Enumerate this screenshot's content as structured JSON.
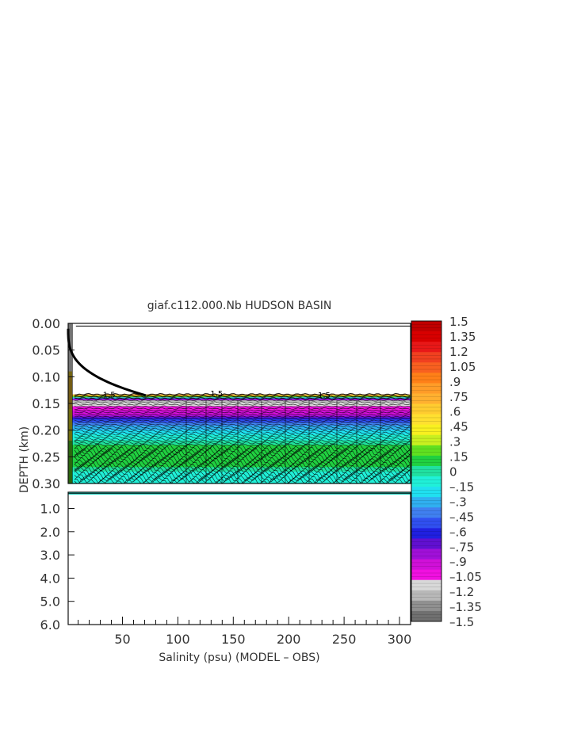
{
  "chart_data": {
    "type": "heatmap",
    "title": "giaf.c112.000.Nb HUDSON BASIN",
    "xlabel": "Salinity (psu) (MODEL – OBS)",
    "ylabel": "DEPTH (km)",
    "xlim": [
      1,
      310
    ],
    "x_ticks": [
      "50",
      "100",
      "150",
      "200",
      "250",
      "300"
    ],
    "x_tick_values": [
      50,
      100,
      150,
      200,
      250,
      300
    ],
    "upper_panel": {
      "ylim": [
        0.0,
        0.3
      ],
      "y_ticks": [
        "0.00",
        "0.05",
        "0.10",
        "0.15",
        "0.20",
        "0.25",
        "0.30"
      ],
      "y_tick_values": [
        0.0,
        0.05,
        0.1,
        0.15,
        0.2,
        0.25,
        0.3
      ]
    },
    "lower_panel": {
      "ylim": [
        0.3,
        6.0
      ],
      "y_ticks": [
        "1.0",
        "2.0",
        "3.0",
        "4.0",
        "5.0",
        "6.0"
      ],
      "y_tick_values": [
        1.0,
        2.0,
        3.0,
        4.0,
        5.0,
        6.0
      ]
    },
    "contour_labels": [
      {
        "text": "1.5",
        "x": 38,
        "depth": 0.133
      },
      {
        "text": "1.5",
        "x": 135,
        "depth": 0.131
      },
      {
        "text": "1.5",
        "x": 232,
        "depth": 0.134
      }
    ],
    "depth_profile": [
      {
        "depth": 0.01,
        "value": 0.0
      },
      {
        "depth": 0.13,
        "value": 1.5
      },
      {
        "depth": 0.145,
        "value": -1.2
      },
      {
        "depth": 0.16,
        "value": -1.05
      },
      {
        "depth": 0.17,
        "value": -0.9
      },
      {
        "depth": 0.18,
        "value": -0.6
      },
      {
        "depth": 0.195,
        "value": -0.3
      },
      {
        "depth": 0.21,
        "value": -0.15
      },
      {
        "depth": 0.225,
        "value": 0.0
      },
      {
        "depth": 0.235,
        "value": 0.15
      },
      {
        "depth": 0.26,
        "value": 0.15
      },
      {
        "depth": 0.285,
        "value": -0.15
      },
      {
        "depth": 0.3,
        "value": -0.15
      }
    ],
    "colorbar": {
      "labels": [
        "1.5",
        "1.35",
        "1.2",
        "1.05",
        ".9",
        ".75",
        ".6",
        ".45",
        ".3",
        ".15",
        "0",
        "–.15",
        "–.3",
        "–.45",
        "–.6",
        "–.75",
        "–.9",
        "–1.05",
        "–1.2",
        "–1.35",
        "–1.5"
      ],
      "colors": [
        "#c00000",
        "#d80000",
        "#e81818",
        "#f04020",
        "#f86020",
        "#ff8018",
        "#ff9c28",
        "#ffb030",
        "#ffcc30",
        "#ffe030",
        "#f8f020",
        "#c8f020",
        "#60e020",
        "#20d040",
        "#20e0a0",
        "#20f0d8",
        "#20e0f0",
        "#30b0f0",
        "#4080f0",
        "#3050f0",
        "#2020e0",
        "#6010d0",
        "#a010d8",
        "#d010d8",
        "#f010e0",
        "#d8d8d8",
        "#b8b8b8",
        "#909090",
        "#707070"
      ]
    }
  }
}
